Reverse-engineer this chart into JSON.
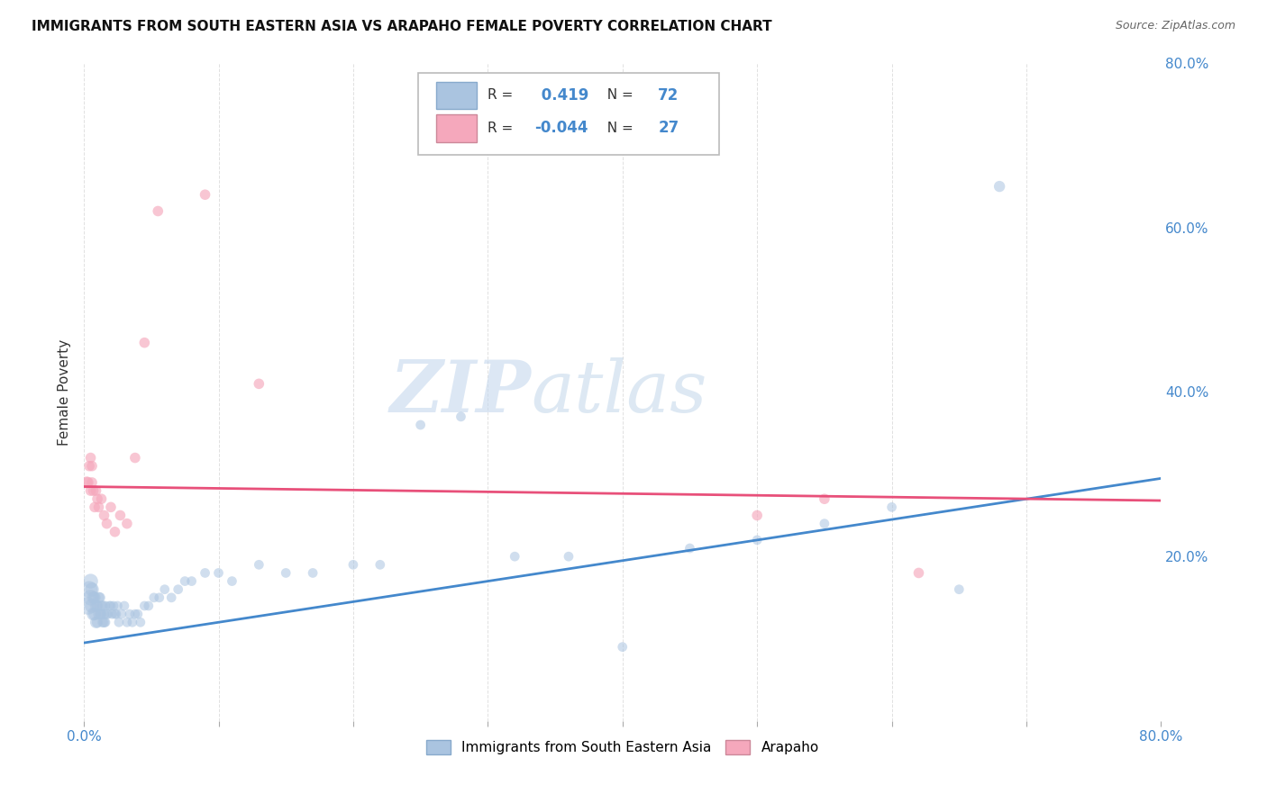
{
  "title": "IMMIGRANTS FROM SOUTH EASTERN ASIA VS ARAPAHO FEMALE POVERTY CORRELATION CHART",
  "source": "Source: ZipAtlas.com",
  "ylabel": "Female Poverty",
  "legend_labels": [
    "Immigrants from South Eastern Asia",
    "Arapaho"
  ],
  "blue_R": 0.419,
  "blue_N": 72,
  "pink_R": -0.044,
  "pink_N": 27,
  "blue_color": "#aac4e0",
  "pink_color": "#f5a8bc",
  "blue_line_color": "#4488cc",
  "pink_line_color": "#e8507a",
  "legend_value_color": "#4488cc",
  "background_color": "#ffffff",
  "grid_color": "#cccccc",
  "xlim": [
    0,
    0.8
  ],
  "ylim": [
    0,
    0.8
  ],
  "yticks_right": [
    0.2,
    0.4,
    0.6,
    0.8
  ],
  "watermark_zip": "ZIP",
  "watermark_atlas": "atlas",
  "blue_trend_x": [
    0.0,
    0.8
  ],
  "blue_trend_y": [
    0.095,
    0.295
  ],
  "pink_trend_x": [
    0.0,
    0.8
  ],
  "pink_trend_y": [
    0.285,
    0.268
  ],
  "blue_scatter_x": [
    0.003,
    0.004,
    0.005,
    0.005,
    0.006,
    0.006,
    0.007,
    0.007,
    0.008,
    0.008,
    0.009,
    0.009,
    0.01,
    0.01,
    0.011,
    0.011,
    0.012,
    0.012,
    0.013,
    0.013,
    0.014,
    0.014,
    0.015,
    0.015,
    0.016,
    0.016,
    0.017,
    0.018,
    0.019,
    0.02,
    0.021,
    0.022,
    0.023,
    0.024,
    0.025,
    0.026,
    0.028,
    0.03,
    0.032,
    0.034,
    0.036,
    0.038,
    0.04,
    0.042,
    0.045,
    0.048,
    0.052,
    0.056,
    0.06,
    0.065,
    0.07,
    0.075,
    0.08,
    0.09,
    0.1,
    0.11,
    0.13,
    0.15,
    0.17,
    0.2,
    0.22,
    0.25,
    0.28,
    0.32,
    0.36,
    0.4,
    0.45,
    0.5,
    0.55,
    0.6,
    0.65,
    0.68
  ],
  "blue_scatter_y": [
    0.14,
    0.16,
    0.15,
    0.17,
    0.14,
    0.16,
    0.13,
    0.15,
    0.13,
    0.15,
    0.12,
    0.14,
    0.12,
    0.14,
    0.13,
    0.15,
    0.13,
    0.15,
    0.13,
    0.14,
    0.12,
    0.14,
    0.12,
    0.13,
    0.12,
    0.14,
    0.13,
    0.13,
    0.14,
    0.14,
    0.13,
    0.14,
    0.13,
    0.13,
    0.14,
    0.12,
    0.13,
    0.14,
    0.12,
    0.13,
    0.12,
    0.13,
    0.13,
    0.12,
    0.14,
    0.14,
    0.15,
    0.15,
    0.16,
    0.15,
    0.16,
    0.17,
    0.17,
    0.18,
    0.18,
    0.17,
    0.19,
    0.18,
    0.18,
    0.19,
    0.19,
    0.36,
    0.37,
    0.2,
    0.2,
    0.09,
    0.21,
    0.22,
    0.24,
    0.26,
    0.16,
    0.65
  ],
  "blue_scatter_s": [
    200,
    180,
    160,
    140,
    130,
    120,
    110,
    100,
    100,
    90,
    90,
    90,
    80,
    80,
    80,
    80,
    70,
    70,
    70,
    70,
    70,
    70,
    70,
    70,
    60,
    60,
    60,
    60,
    60,
    60,
    60,
    60,
    60,
    60,
    60,
    60,
    60,
    60,
    60,
    60,
    60,
    60,
    60,
    60,
    60,
    60,
    60,
    60,
    60,
    60,
    60,
    60,
    60,
    60,
    60,
    60,
    60,
    60,
    60,
    60,
    60,
    60,
    60,
    60,
    60,
    60,
    60,
    60,
    60,
    60,
    60,
    80
  ],
  "pink_scatter_x": [
    0.002,
    0.003,
    0.004,
    0.005,
    0.005,
    0.006,
    0.006,
    0.007,
    0.008,
    0.009,
    0.01,
    0.011,
    0.013,
    0.015,
    0.017,
    0.02,
    0.023,
    0.027,
    0.032,
    0.038,
    0.045,
    0.055,
    0.09,
    0.13,
    0.5,
    0.55,
    0.62
  ],
  "pink_scatter_y": [
    0.29,
    0.29,
    0.31,
    0.28,
    0.32,
    0.29,
    0.31,
    0.28,
    0.26,
    0.28,
    0.27,
    0.26,
    0.27,
    0.25,
    0.24,
    0.26,
    0.23,
    0.25,
    0.24,
    0.32,
    0.46,
    0.62,
    0.64,
    0.41,
    0.25,
    0.27,
    0.18
  ],
  "pink_scatter_s": [
    90,
    80,
    70,
    70,
    70,
    70,
    70,
    70,
    70,
    70,
    70,
    70,
    70,
    70,
    70,
    70,
    70,
    70,
    70,
    70,
    70,
    70,
    70,
    70,
    70,
    70,
    70
  ]
}
